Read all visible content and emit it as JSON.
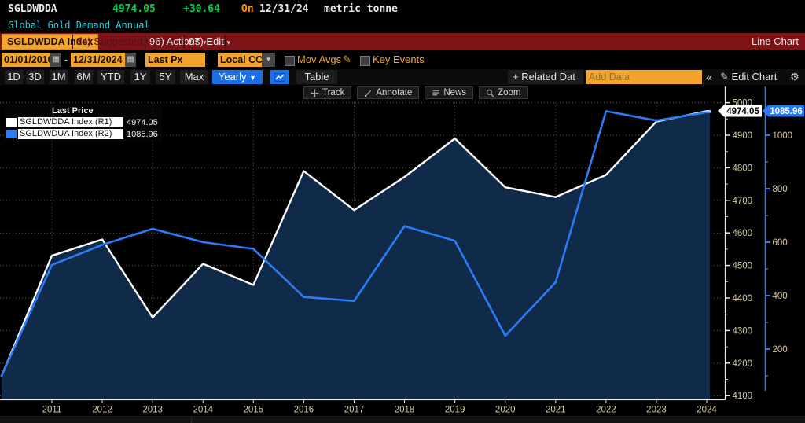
{
  "quote": {
    "symbol": "SGLDWDDA",
    "price": "4974.05",
    "change": "+30.64",
    "on_label": "On",
    "date": "12/31/24",
    "unit": "metric tonne",
    "subtitle": "Global Gold Demand Annual"
  },
  "menu": {
    "security_tab": "SGLDWDDA Index",
    "suggested_charts": "94) Suggested Charts",
    "actions": "96) Actions",
    "edit": "97) Edit",
    "view_label": "Line Chart"
  },
  "fields": {
    "start_date": "01/01/2010",
    "end_date": "12/31/2024",
    "range_separator": "-",
    "price_type": "Last Px",
    "currency": "Local CCY",
    "mov_avgs_label": "Mov Avgs",
    "key_events_label": "Key Events"
  },
  "icons": {
    "dropdown": "▾",
    "select_arrow": "▼",
    "frequency_arrow": "▼",
    "collapse": "«",
    "pencil": "✎",
    "gear": "⚙",
    "calendar": "▦",
    "plus": "+"
  },
  "period_bar": {
    "ranges": [
      "1D",
      "3D",
      "1M",
      "6M",
      "YTD",
      "1Y",
      "5Y",
      "Max"
    ],
    "frequency": "Yearly",
    "table_label": "Table",
    "related_data_label": "+ Related Dat",
    "add_data_placeholder": "Add Data",
    "collapse_label": "«",
    "edit_chart_label": "Edit Chart"
  },
  "chart_tools": [
    {
      "name": "track",
      "label": "Track"
    },
    {
      "name": "annotate",
      "label": "Annotate"
    },
    {
      "name": "news",
      "label": "News"
    },
    {
      "name": "zoom",
      "label": "Zoom"
    }
  ],
  "legend": {
    "title": "Last Price",
    "series": [
      {
        "label": "SGLDWDDA Index  (R1)",
        "value": "4974.05",
        "swatch": "#ffffff"
      },
      {
        "label": "SGLDWDUA Index  (R2)",
        "value": "1085.96",
        "swatch": "#2d7cf7"
      }
    ]
  },
  "badges": {
    "r1": "4974.05",
    "r2": "1085.96"
  },
  "colors": {
    "accent_amber": "#f2a42e",
    "accent_blue": "#1a6fe8",
    "line_white": "#ffffff",
    "line_blue": "#2d7cf7",
    "fill_navy": "#102a4a",
    "axis_label": "#d9cba3",
    "green": "#00d04a",
    "orange": "#ff9a00",
    "cyan": "#1fd2e6",
    "menu_red": "#7d1316"
  },
  "chart_data": {
    "type": "line",
    "title": "Global Gold Demand Annual",
    "x": [
      2010,
      2011,
      2012,
      2013,
      2014,
      2015,
      2016,
      2017,
      2018,
      2019,
      2020,
      2021,
      2022,
      2023,
      2024
    ],
    "series": [
      {
        "name": "SGLDWDDA Index",
        "axis": "R1",
        "color": "#ffffff",
        "values": [
          4160,
          4530,
          4580,
          4340,
          4505,
          4440,
          4790,
          4670,
          4772,
          4890,
          4740,
          4710,
          4778,
          4942,
          4974.05
        ]
      },
      {
        "name": "SGLDWDUA Index",
        "axis": "R2",
        "color": "#2d7cf7",
        "values": [
          100,
          515,
          590,
          650,
          600,
          575,
          395,
          380,
          660,
          605,
          250,
          450,
          1090,
          1055,
          1085.96
        ]
      }
    ],
    "y_axis_right_1": {
      "label_ticks": [
        5000,
        4900,
        4800,
        4700,
        4600,
        4500,
        4400,
        4300,
        4200,
        4100
      ],
      "range": [
        4075,
        5030
      ]
    },
    "y_axis_right_2": {
      "label_ticks": [
        1000,
        800,
        600,
        400,
        200
      ],
      "range": [
        55,
        1120
      ]
    },
    "x_tick_labels": [
      "2011",
      "2012",
      "2013",
      "2014",
      "2015",
      "2016",
      "2017",
      "2018",
      "2019",
      "2020",
      "2021",
      "2022",
      "2023",
      "2024"
    ],
    "grid_vertical_years": [
      2011,
      2013,
      2015,
      2017,
      2019,
      2021,
      2023
    ],
    "legend_position": "top-left",
    "grid": "dotted",
    "area_fill_under": "SGLDWDDA Index"
  }
}
